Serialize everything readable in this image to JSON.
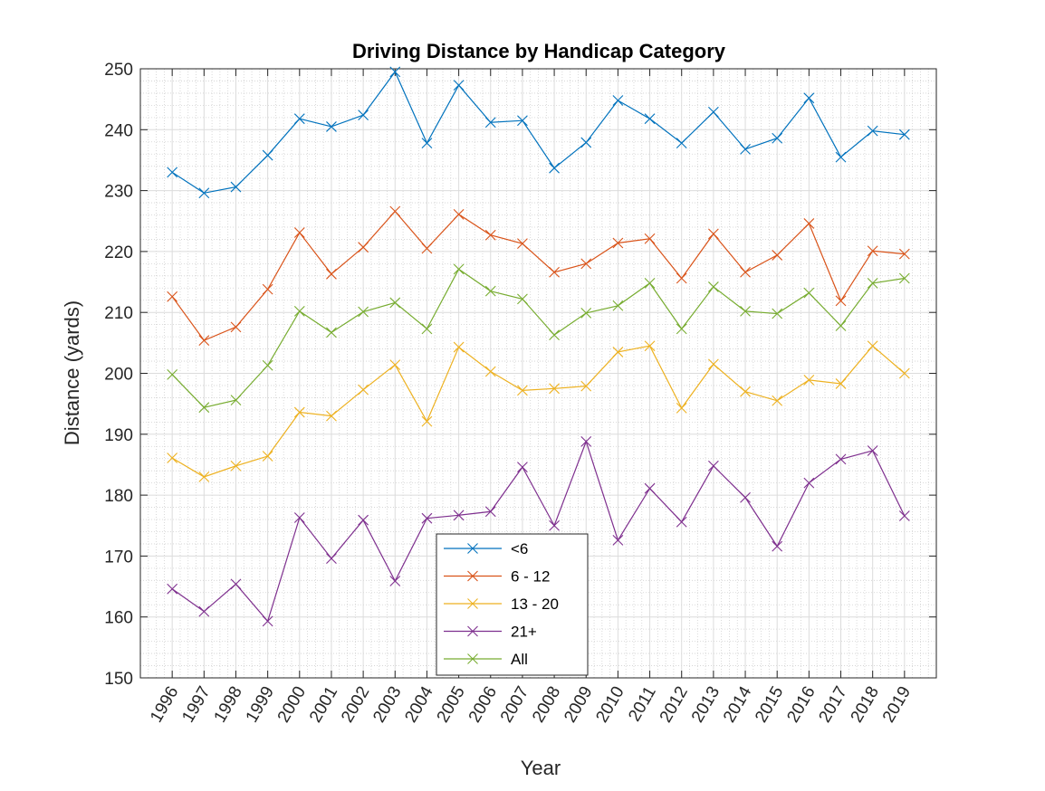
{
  "chart_data": {
    "type": "line",
    "title": "Driving Distance by Handicap Category",
    "xlabel": "Year",
    "ylabel": "Distance (yards)",
    "ylim": [
      150,
      250
    ],
    "yticks": [
      "150",
      "160",
      "170",
      "180",
      "190",
      "200",
      "210",
      "220",
      "230",
      "240",
      "250"
    ],
    "categories": [
      "1996",
      "1997",
      "1998",
      "1999",
      "2000",
      "2001",
      "2002",
      "2003",
      "2004",
      "2005",
      "2006",
      "2007",
      "2008",
      "2009",
      "2010",
      "2011",
      "2012",
      "2013",
      "2014",
      "2015",
      "2016",
      "2017",
      "2018",
      "2019"
    ],
    "grid": "major and minor",
    "legend_position": "bottom-center",
    "marker": "x",
    "series": [
      {
        "name": "<6",
        "color": "#0072BD",
        "values": [
          233,
          229.6,
          230.6,
          235.8,
          241.8,
          240.5,
          242.4,
          249.5,
          237.8,
          247.3,
          241.2,
          241.5,
          233.7,
          237.9,
          244.8,
          241.8,
          237.8,
          242.9,
          236.8,
          238.6,
          245.2,
          235.5,
          239.8,
          239.2
        ]
      },
      {
        "name": "6 - 12",
        "color": "#D95319",
        "values": [
          212.6,
          205.4,
          207.6,
          213.8,
          223.1,
          216.3,
          220.7,
          226.6,
          220.5,
          226.1,
          222.7,
          221.3,
          216.6,
          218,
          221.4,
          222.1,
          215.6,
          222.9,
          216.6,
          219.4,
          224.6,
          211.9,
          220.1,
          219.6
        ]
      },
      {
        "name": "13 - 20",
        "color": "#EDB120",
        "values": [
          186.1,
          183,
          184.8,
          186.4,
          193.6,
          193,
          197.3,
          201.4,
          192.1,
          204.3,
          200.3,
          197.2,
          197.5,
          197.9,
          203.5,
          204.5,
          194.3,
          201.5,
          197,
          195.5,
          198.9,
          198.3,
          204.5,
          200
        ]
      },
      {
        "name": "21+",
        "color": "#7E2F8E",
        "values": [
          164.6,
          160.9,
          165.4,
          159.3,
          176.3,
          169.6,
          175.9,
          165.9,
          176.2,
          176.7,
          177.3,
          184.6,
          175,
          188.8,
          172.6,
          181.1,
          175.6,
          184.8,
          179.6,
          171.6,
          182,
          185.9,
          187.3,
          176.6
        ]
      },
      {
        "name": "All",
        "color": "#77AC30",
        "values": [
          199.8,
          194.4,
          195.6,
          201.3,
          210.2,
          206.7,
          210.1,
          211.6,
          207.3,
          217.1,
          213.5,
          212.2,
          206.3,
          209.9,
          211.1,
          214.8,
          207.3,
          214.2,
          210.2,
          209.8,
          213.2,
          207.8,
          214.8,
          215.6
        ]
      }
    ],
    "legend_order": [
      "<6",
      "6 - 12",
      "13 - 20",
      "21+",
      "All"
    ]
  }
}
